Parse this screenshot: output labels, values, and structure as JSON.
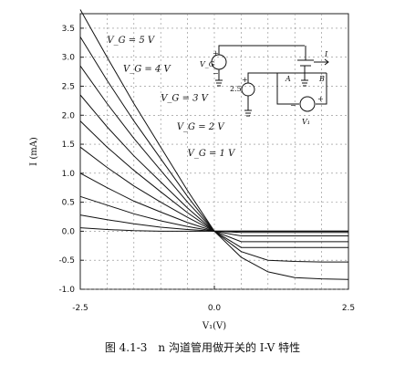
{
  "chart_data": {
    "type": "line",
    "xlabel": "V₁(V)",
    "ylabel": "I (mA)",
    "xlim": [
      -2.5,
      2.5
    ],
    "ylim": [
      -1.0,
      3.75
    ],
    "x_ticks": [
      "-2.5",
      "0.0",
      "2.5"
    ],
    "y_ticks": [
      "-1.0",
      "-0.5",
      "0.0",
      "0.5",
      "1.0",
      "1.5",
      "2.0",
      "2.5",
      "3.0",
      "3.5"
    ],
    "grid": true,
    "x": [
      -2.5,
      -2.0,
      -1.5,
      -1.0,
      -0.5,
      0.0,
      0.5,
      1.0,
      1.5,
      2.0,
      2.5
    ],
    "series": [
      {
        "name": "V_G = 5 V",
        "values": [
          3.82,
          3.0,
          2.2,
          1.45,
          0.7,
          0.0,
          -0.45,
          -0.7,
          -0.8,
          -0.82,
          -0.83
        ]
      },
      {
        "name": "",
        "values": [
          3.35,
          2.6,
          1.9,
          1.25,
          0.6,
          0.0,
          -0.35,
          -0.5,
          -0.52,
          -0.53,
          -0.53
        ]
      },
      {
        "name": "V_G = 4 V",
        "values": [
          2.85,
          2.2,
          1.6,
          1.05,
          0.5,
          0.0,
          -0.28,
          -0.28,
          -0.28,
          -0.28,
          -0.28
        ]
      },
      {
        "name": "",
        "values": [
          2.35,
          1.8,
          1.3,
          0.85,
          0.4,
          0.0,
          -0.18,
          -0.18,
          -0.18,
          -0.18,
          -0.18
        ]
      },
      {
        "name": "V_G = 3 V",
        "values": [
          1.9,
          1.45,
          1.05,
          0.68,
          0.32,
          0.0,
          -0.08,
          -0.08,
          -0.08,
          -0.08,
          -0.08
        ]
      },
      {
        "name": "",
        "values": [
          1.45,
          1.1,
          0.78,
          0.5,
          0.24,
          0.0,
          -0.02,
          -0.02,
          -0.02,
          -0.02,
          -0.02
        ]
      },
      {
        "name": "V_G = 2 V",
        "values": [
          1.0,
          0.75,
          0.52,
          0.33,
          0.15,
          0.0,
          0.0,
          0.0,
          0.0,
          0.0,
          0.0
        ]
      },
      {
        "name": "",
        "values": [
          0.6,
          0.45,
          0.3,
          0.18,
          0.08,
          0.0,
          0.0,
          0.0,
          0.0,
          0.0,
          0.0
        ]
      },
      {
        "name": "V_G = 1 V",
        "values": [
          0.28,
          0.2,
          0.13,
          0.07,
          0.03,
          0.0,
          0.0,
          0.0,
          0.0,
          0.0,
          0.0
        ]
      },
      {
        "name": "",
        "values": [
          0.06,
          0.03,
          0.01,
          0.0,
          0.0,
          0.0,
          0.0,
          0.0,
          0.0,
          0.0,
          0.0
        ]
      }
    ],
    "annotations": [
      "V_G = 5 V",
      "V_G = 4 V",
      "V_G = 3 V",
      "V_G = 2 V",
      "V_G = 1 V"
    ]
  },
  "circuit": {
    "vg_label": "V_G",
    "source_label": "2.5",
    "node_a": "A",
    "node_b": "B",
    "v1_label": "V₁",
    "current_label": "I",
    "plus": "+",
    "minus": "−"
  },
  "caption": "图 4.1-3　n 沟道管用做开关的 I-V 特性"
}
